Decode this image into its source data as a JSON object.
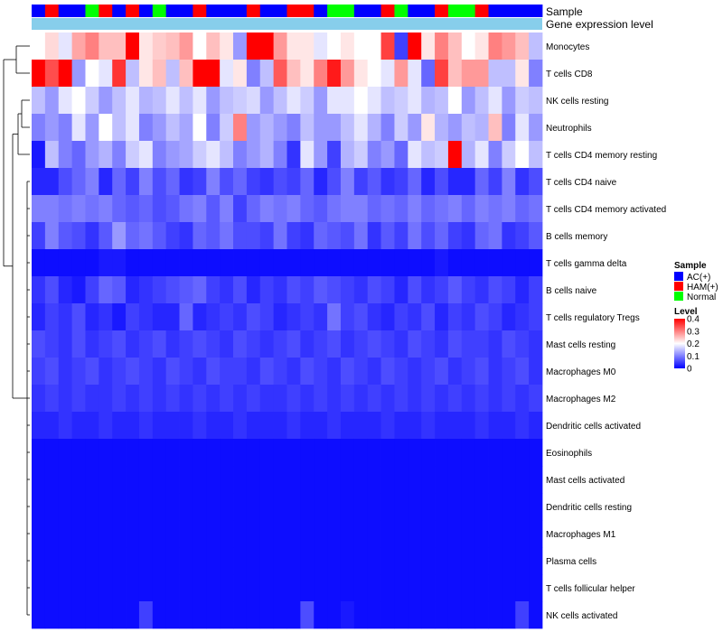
{
  "chart_data": {
    "type": "heatmap",
    "title": "",
    "n_samples": 38,
    "annotation_rows": [
      "Sample",
      "Gene expression level"
    ],
    "sample_groups": [
      "AC(+)",
      "HAM(+)",
      "AC(+)",
      "AC(+)",
      "Normal",
      "HAM(+)",
      "AC(+)",
      "HAM(+)",
      "AC(+)",
      "Normal",
      "AC(+)",
      "AC(+)",
      "HAM(+)",
      "AC(+)",
      "AC(+)",
      "AC(+)",
      "HAM(+)",
      "AC(+)",
      "AC(+)",
      "HAM(+)",
      "HAM(+)",
      "AC(+)",
      "Normal",
      "Normal",
      "AC(+)",
      "AC(+)",
      "HAM(+)",
      "Normal",
      "AC(+)",
      "AC(+)",
      "HAM(+)",
      "Normal",
      "Normal",
      "HAM(+)",
      "AC(+)",
      "AC(+)",
      "AC(+)",
      "AC(+)"
    ],
    "expression_color": "#87ceeb",
    "row_labels": [
      "Monocytes",
      "T cells CD8",
      "NK cells resting",
      "Neutrophils",
      "T cells CD4 memory resting",
      "T cells CD4 naive",
      "T cells CD4 memory activated",
      "B cells memory",
      "T cells gamma delta",
      "B cells naive",
      "T cells regulatory  Tregs",
      "Mast cells resting",
      "Macrophages M0",
      "Macrophages M2",
      "Dendritic cells activated",
      "Eosinophils",
      "Mast cells activated",
      "Dendritic cells resting",
      "Macrophages M1",
      "Plasma cells",
      "T cells follicular helper",
      "NK cells activated"
    ],
    "values": [
      [
        0.2,
        0.23,
        0.18,
        0.27,
        0.3,
        0.25,
        0.25,
        0.4,
        0.22,
        0.24,
        0.25,
        0.28,
        0.2,
        0.25,
        0.22,
        0.12,
        0.4,
        0.4,
        0.28,
        0.22,
        0.22,
        0.18,
        0.2,
        0.22,
        0.2,
        0.2,
        0.35,
        0.05,
        0.4,
        0.22,
        0.3,
        0.25,
        0.2,
        0.22,
        0.3,
        0.28,
        0.25,
        0.15
      ],
      [
        0.4,
        0.34,
        0.4,
        0.12,
        0.2,
        0.18,
        0.36,
        0.15,
        0.22,
        0.25,
        0.15,
        0.25,
        0.4,
        0.4,
        0.18,
        0.22,
        0.1,
        0.15,
        0.33,
        0.25,
        0.22,
        0.3,
        0.38,
        0.28,
        0.22,
        0.2,
        0.18,
        0.28,
        0.18,
        0.08,
        0.35,
        0.25,
        0.28,
        0.28,
        0.15,
        0.15,
        0.22,
        0.1
      ],
      [
        0.15,
        0.12,
        0.18,
        0.2,
        0.16,
        0.12,
        0.15,
        0.18,
        0.14,
        0.15,
        0.18,
        0.15,
        0.18,
        0.12,
        0.15,
        0.16,
        0.17,
        0.12,
        0.15,
        0.18,
        0.16,
        0.12,
        0.18,
        0.18,
        0.2,
        0.18,
        0.15,
        0.16,
        0.18,
        0.14,
        0.15,
        0.2,
        0.12,
        0.15,
        0.18,
        0.12,
        0.16,
        0.15
      ],
      [
        0.1,
        0.12,
        0.1,
        0.18,
        0.12,
        0.2,
        0.15,
        0.18,
        0.1,
        0.12,
        0.15,
        0.13,
        0.2,
        0.1,
        0.16,
        0.3,
        0.12,
        0.14,
        0.12,
        0.1,
        0.15,
        0.12,
        0.12,
        0.15,
        0.18,
        0.14,
        0.1,
        0.16,
        0.12,
        0.22,
        0.14,
        0.12,
        0.15,
        0.14,
        0.25,
        0.1,
        0.18,
        0.12
      ],
      [
        0.02,
        0.15,
        0.1,
        0.08,
        0.12,
        0.14,
        0.1,
        0.16,
        0.18,
        0.1,
        0.12,
        0.13,
        0.16,
        0.18,
        0.15,
        0.1,
        0.12,
        0.14,
        0.1,
        0.04,
        0.18,
        0.12,
        0.05,
        0.14,
        0.16,
        0.1,
        0.12,
        0.08,
        0.18,
        0.15,
        0.16,
        0.4,
        0.14,
        0.18,
        0.1,
        0.16,
        0.2,
        0.15
      ],
      [
        0.03,
        0.03,
        0.06,
        0.08,
        0.1,
        0.03,
        0.08,
        0.05,
        0.1,
        0.06,
        0.08,
        0.04,
        0.05,
        0.1,
        0.06,
        0.08,
        0.05,
        0.04,
        0.06,
        0.05,
        0.08,
        0.03,
        0.06,
        0.1,
        0.05,
        0.07,
        0.04,
        0.05,
        0.08,
        0.03,
        0.06,
        0.03,
        0.03,
        0.08,
        0.05,
        0.1,
        0.04,
        0.06
      ],
      [
        0.1,
        0.1,
        0.09,
        0.1,
        0.09,
        0.1,
        0.08,
        0.07,
        0.08,
        0.06,
        0.07,
        0.09,
        0.1,
        0.07,
        0.1,
        0.05,
        0.08,
        0.1,
        0.09,
        0.1,
        0.08,
        0.07,
        0.09,
        0.1,
        0.1,
        0.08,
        0.09,
        0.08,
        0.1,
        0.08,
        0.09,
        0.1,
        0.08,
        0.1,
        0.09,
        0.1,
        0.08,
        0.09
      ],
      [
        0.05,
        0.1,
        0.07,
        0.06,
        0.04,
        0.07,
        0.12,
        0.08,
        0.09,
        0.07,
        0.05,
        0.04,
        0.08,
        0.07,
        0.09,
        0.06,
        0.06,
        0.05,
        0.09,
        0.05,
        0.04,
        0.08,
        0.07,
        0.06,
        0.09,
        0.04,
        0.07,
        0.05,
        0.09,
        0.06,
        0.08,
        0.05,
        0.04,
        0.08,
        0.09,
        0.04,
        0.05,
        0.07
      ],
      [
        0.01,
        0.01,
        0.01,
        0.01,
        0.01,
        0.02,
        0.02,
        0.01,
        0.01,
        0.01,
        0.01,
        0.01,
        0.01,
        0.01,
        0.01,
        0.01,
        0.01,
        0.01,
        0.01,
        0.01,
        0.01,
        0.01,
        0.01,
        0.01,
        0.01,
        0.01,
        0.01,
        0.01,
        0.01,
        0.01,
        0.02,
        0.01,
        0.01,
        0.01,
        0.01,
        0.01,
        0.01,
        0.01
      ],
      [
        0.04,
        0.06,
        0.03,
        0.02,
        0.05,
        0.08,
        0.07,
        0.03,
        0.04,
        0.05,
        0.06,
        0.07,
        0.08,
        0.05,
        0.04,
        0.06,
        0.03,
        0.05,
        0.04,
        0.06,
        0.05,
        0.07,
        0.06,
        0.05,
        0.04,
        0.06,
        0.05,
        0.03,
        0.06,
        0.04,
        0.05,
        0.07,
        0.05,
        0.04,
        0.06,
        0.05,
        0.03,
        0.05
      ],
      [
        0.03,
        0.05,
        0.04,
        0.06,
        0.03,
        0.04,
        0.02,
        0.05,
        0.04,
        0.03,
        0.03,
        0.08,
        0.03,
        0.04,
        0.05,
        0.04,
        0.06,
        0.05,
        0.03,
        0.04,
        0.05,
        0.04,
        0.09,
        0.05,
        0.06,
        0.04,
        0.03,
        0.05,
        0.04,
        0.06,
        0.03,
        0.05,
        0.04,
        0.06,
        0.05,
        0.03,
        0.04,
        0.05
      ],
      [
        0.06,
        0.05,
        0.04,
        0.06,
        0.04,
        0.05,
        0.06,
        0.04,
        0.05,
        0.06,
        0.04,
        0.05,
        0.06,
        0.05,
        0.04,
        0.06,
        0.05,
        0.04,
        0.05,
        0.06,
        0.04,
        0.05,
        0.06,
        0.04,
        0.05,
        0.06,
        0.05,
        0.04,
        0.06,
        0.05,
        0.04,
        0.06,
        0.05,
        0.05,
        0.04,
        0.06,
        0.05,
        0.04
      ],
      [
        0.05,
        0.06,
        0.04,
        0.05,
        0.06,
        0.04,
        0.05,
        0.06,
        0.05,
        0.04,
        0.06,
        0.05,
        0.04,
        0.06,
        0.05,
        0.05,
        0.04,
        0.06,
        0.05,
        0.04,
        0.06,
        0.05,
        0.04,
        0.06,
        0.05,
        0.04,
        0.06,
        0.05,
        0.04,
        0.05,
        0.06,
        0.04,
        0.05,
        0.06,
        0.04,
        0.05,
        0.06,
        0.04
      ],
      [
        0.04,
        0.05,
        0.04,
        0.05,
        0.04,
        0.04,
        0.05,
        0.04,
        0.05,
        0.04,
        0.05,
        0.04,
        0.05,
        0.04,
        0.05,
        0.04,
        0.05,
        0.04,
        0.04,
        0.05,
        0.04,
        0.05,
        0.04,
        0.05,
        0.04,
        0.05,
        0.04,
        0.05,
        0.04,
        0.05,
        0.04,
        0.05,
        0.04,
        0.05,
        0.04,
        0.05,
        0.04,
        0.05
      ],
      [
        0.03,
        0.03,
        0.04,
        0.03,
        0.03,
        0.04,
        0.03,
        0.03,
        0.04,
        0.03,
        0.03,
        0.03,
        0.04,
        0.03,
        0.03,
        0.04,
        0.03,
        0.03,
        0.03,
        0.04,
        0.03,
        0.03,
        0.04,
        0.03,
        0.03,
        0.03,
        0.04,
        0.03,
        0.03,
        0.04,
        0.03,
        0.03,
        0.03,
        0.04,
        0.03,
        0.03,
        0.04,
        0.03
      ],
      [
        0.01,
        0.01,
        0.01,
        0.01,
        0.01,
        0.01,
        0.01,
        0.01,
        0.01,
        0.01,
        0.01,
        0.01,
        0.01,
        0.01,
        0.01,
        0.01,
        0.01,
        0.01,
        0.01,
        0.01,
        0.01,
        0.01,
        0.01,
        0.01,
        0.01,
        0.01,
        0.01,
        0.01,
        0.01,
        0.01,
        0.01,
        0.01,
        0.01,
        0.01,
        0.01,
        0.01,
        0.01,
        0.01
      ],
      [
        0.01,
        0.01,
        0.01,
        0.01,
        0.01,
        0.01,
        0.01,
        0.01,
        0.01,
        0.01,
        0.01,
        0.01,
        0.01,
        0.01,
        0.01,
        0.01,
        0.01,
        0.01,
        0.01,
        0.01,
        0.01,
        0.01,
        0.01,
        0.01,
        0.01,
        0.01,
        0.01,
        0.01,
        0.01,
        0.01,
        0.01,
        0.01,
        0.01,
        0.01,
        0.01,
        0.01,
        0.01,
        0.01
      ],
      [
        0.01,
        0.01,
        0.01,
        0.01,
        0.01,
        0.01,
        0.01,
        0.01,
        0.01,
        0.01,
        0.01,
        0.01,
        0.01,
        0.01,
        0.01,
        0.01,
        0.01,
        0.01,
        0.01,
        0.01,
        0.01,
        0.01,
        0.01,
        0.01,
        0.01,
        0.01,
        0.01,
        0.01,
        0.01,
        0.01,
        0.01,
        0.01,
        0.01,
        0.01,
        0.01,
        0.01,
        0.01,
        0.01
      ],
      [
        0.01,
        0.01,
        0.01,
        0.01,
        0.01,
        0.01,
        0.01,
        0.01,
        0.01,
        0.01,
        0.01,
        0.01,
        0.01,
        0.01,
        0.01,
        0.01,
        0.01,
        0.01,
        0.01,
        0.01,
        0.01,
        0.01,
        0.01,
        0.01,
        0.01,
        0.01,
        0.01,
        0.01,
        0.01,
        0.01,
        0.01,
        0.01,
        0.01,
        0.01,
        0.01,
        0.01,
        0.01,
        0.01
      ],
      [
        0.01,
        0.01,
        0.01,
        0.01,
        0.01,
        0.01,
        0.01,
        0.01,
        0.01,
        0.01,
        0.01,
        0.01,
        0.01,
        0.01,
        0.01,
        0.01,
        0.01,
        0.01,
        0.01,
        0.01,
        0.01,
        0.01,
        0.01,
        0.01,
        0.01,
        0.01,
        0.01,
        0.01,
        0.01,
        0.01,
        0.01,
        0.01,
        0.01,
        0.01,
        0.01,
        0.01,
        0.01,
        0.01
      ],
      [
        0.01,
        0.01,
        0.01,
        0.01,
        0.01,
        0.01,
        0.01,
        0.01,
        0.01,
        0.01,
        0.01,
        0.01,
        0.01,
        0.01,
        0.01,
        0.01,
        0.01,
        0.01,
        0.01,
        0.01,
        0.01,
        0.01,
        0.01,
        0.01,
        0.01,
        0.01,
        0.01,
        0.01,
        0.01,
        0.01,
        0.01,
        0.01,
        0.01,
        0.01,
        0.01,
        0.01,
        0.01,
        0.01
      ],
      [
        0.01,
        0.01,
        0.01,
        0.01,
        0.01,
        0.01,
        0.01,
        0.01,
        0.05,
        0.01,
        0.01,
        0.01,
        0.01,
        0.01,
        0.01,
        0.01,
        0.01,
        0.01,
        0.01,
        0.01,
        0.06,
        0.01,
        0.01,
        0.02,
        0.01,
        0.01,
        0.01,
        0.01,
        0.01,
        0.01,
        0.01,
        0.01,
        0.01,
        0.01,
        0.01,
        0.01,
        0.05,
        0.01
      ]
    ],
    "legend": {
      "position": "right",
      "sample": {
        "title": "Sample",
        "items": [
          {
            "label": "AC(+)",
            "color": "#0000ff"
          },
          {
            "label": "HAM(+)",
            "color": "#ff0000"
          },
          {
            "label": "Normal",
            "color": "#00ff00"
          }
        ]
      },
      "level": {
        "title": "Level",
        "ticks": [
          "0.4",
          "0.3",
          "0.2",
          "0.1",
          "0"
        ],
        "tick_values": [
          0.4,
          0.3,
          0.2,
          0.1,
          0
        ],
        "range": [
          0,
          0.4
        ],
        "colors": [
          "#0000ff",
          "#ffffff",
          "#ff0000"
        ]
      }
    }
  }
}
